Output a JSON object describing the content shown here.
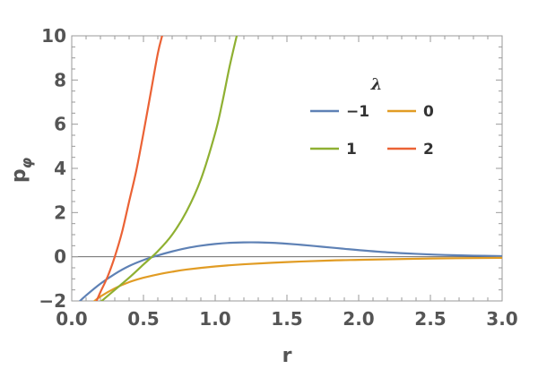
{
  "chart_data": {
    "type": "line",
    "title": "",
    "xlabel": "r",
    "ylabel_base": "p",
    "ylabel_sub": "φ",
    "xlim": [
      0,
      3.0
    ],
    "ylim": [
      -2,
      10
    ],
    "x_ticks": [
      0.0,
      0.5,
      1.0,
      1.5,
      2.0,
      2.5,
      3.0
    ],
    "x_tick_labels": [
      "0.0",
      "0.5",
      "1.0",
      "1.5",
      "2.0",
      "2.5",
      "3.0"
    ],
    "y_ticks": [
      -2,
      0,
      2,
      4,
      6,
      8,
      10
    ],
    "y_tick_labels": [
      "−2",
      "0",
      "2",
      "4",
      "6",
      "8",
      "10"
    ],
    "grid": false,
    "zero_line": true,
    "legend": {
      "title": "λ",
      "placement": "top-right-inside",
      "columns": 2
    },
    "series": [
      {
        "name": "−1",
        "color": "#5e81b5",
        "x": [
          0.05,
          0.1,
          0.2,
          0.3,
          0.4,
          0.5,
          0.6,
          0.7,
          0.8,
          0.9,
          1.0,
          1.1,
          1.2,
          1.3,
          1.4,
          1.5,
          1.6,
          1.7,
          1.8,
          1.9,
          2.0,
          2.2,
          2.4,
          2.6,
          2.8,
          3.0
        ],
        "y": [
          -2.05,
          -1.75,
          -1.22,
          -0.78,
          -0.42,
          -0.15,
          0.06,
          0.24,
          0.39,
          0.5,
          0.58,
          0.63,
          0.65,
          0.65,
          0.63,
          0.59,
          0.54,
          0.48,
          0.42,
          0.36,
          0.3,
          0.2,
          0.13,
          0.08,
          0.05,
          0.03
        ]
      },
      {
        "name": "0",
        "color": "#e19c24",
        "x": [
          0.15,
          0.2,
          0.3,
          0.4,
          0.5,
          0.6,
          0.7,
          0.8,
          1.0,
          1.2,
          1.5,
          1.8,
          2.0,
          2.5,
          3.0
        ],
        "y": [
          -2.05,
          -1.8,
          -1.43,
          -1.15,
          -0.95,
          -0.8,
          -0.68,
          -0.58,
          -0.44,
          -0.34,
          -0.24,
          -0.17,
          -0.14,
          -0.08,
          -0.05
        ]
      },
      {
        "name": "1",
        "color": "#8fb032",
        "x": [
          0.2,
          0.3,
          0.4,
          0.5,
          0.6,
          0.7,
          0.8,
          0.9,
          1.0,
          1.05,
          1.1,
          1.15
        ],
        "y": [
          -2.05,
          -1.5,
          -0.95,
          -0.35,
          0.25,
          1.0,
          2.05,
          3.5,
          5.6,
          7.0,
          8.6,
          10.0
        ]
      },
      {
        "name": "2",
        "color": "#eb6235",
        "x": [
          0.17,
          0.2,
          0.25,
          0.3,
          0.35,
          0.4,
          0.45,
          0.5,
          0.55,
          0.6,
          0.63
        ],
        "y": [
          -2.05,
          -1.6,
          -0.9,
          0.0,
          1.1,
          2.5,
          3.9,
          5.6,
          7.4,
          9.2,
          10.0
        ]
      }
    ]
  }
}
